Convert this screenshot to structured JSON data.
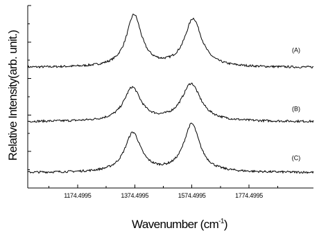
{
  "chart_data": {
    "type": "line",
    "title": "",
    "xlabel": "Wavenumber (cm",
    "xlabel_superscript": "-1",
    "xlabel_close": ")",
    "ylabel": "Relative Intensity(arb. unit.)",
    "xlim": [
      1000,
      2000
    ],
    "ylim": [
      0,
      1
    ],
    "x_ticks": [
      1174.4995,
      1374.4995,
      1574.4995,
      1774.4995
    ],
    "x_tick_labels": [
      "1174.4995",
      "1374.4995",
      "1574.4995",
      "1774.4995"
    ],
    "y_tick_labels_shown": false,
    "grid": false,
    "legend": "none",
    "series": [
      {
        "name": "(A)",
        "baseline": 0.66,
        "peaks": [
          {
            "x": 1372,
            "height": 0.284,
            "width": 32
          },
          {
            "x": 1579,
            "height": 0.263,
            "width": 36
          }
        ]
      },
      {
        "name": "(B)",
        "baseline": 0.363,
        "peaks": [
          {
            "x": 1366,
            "height": 0.183,
            "width": 36
          },
          {
            "x": 1572,
            "height": 0.205,
            "width": 40
          }
        ]
      },
      {
        "name": "(C)",
        "baseline": 0.084,
        "peaks": [
          {
            "x": 1368,
            "height": 0.215,
            "width": 34
          },
          {
            "x": 1574,
            "height": 0.263,
            "width": 34
          }
        ]
      }
    ]
  }
}
